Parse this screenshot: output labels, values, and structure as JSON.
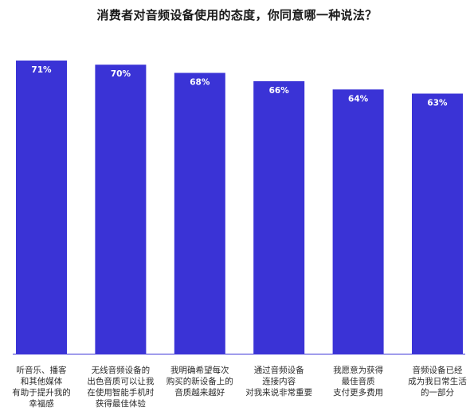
{
  "chart_data": {
    "type": "bar",
    "title": "消费者对音频设备使用的态度，你同意哪一种说法？",
    "categories": [
      [
        "听音乐、播客",
        "和其他媒体",
        "有助于提升我的",
        "幸福感"
      ],
      [
        "无线音频设备的",
        "出色音质可以让我",
        "在使用智能手机时",
        "获得最佳体验"
      ],
      [
        "我明确希望每次",
        "购买的新设备上的",
        "音质越来越好"
      ],
      [
        "通过音频设备",
        "连接内容",
        "对我来说非常重要"
      ],
      [
        "我愿意为获得",
        "最佳音质",
        "支付更多费用"
      ],
      [
        "音频设备已经",
        "成为我日常生活",
        "的一部分"
      ]
    ],
    "values": [
      71,
      70,
      68,
      66,
      64,
      63
    ],
    "value_labels": [
      "71%",
      "70%",
      "68%",
      "66%",
      "64%",
      "63%"
    ],
    "bar_color": "#3a33d6",
    "axis_color": "#3a33d6",
    "ylim": [
      0,
      71
    ]
  }
}
